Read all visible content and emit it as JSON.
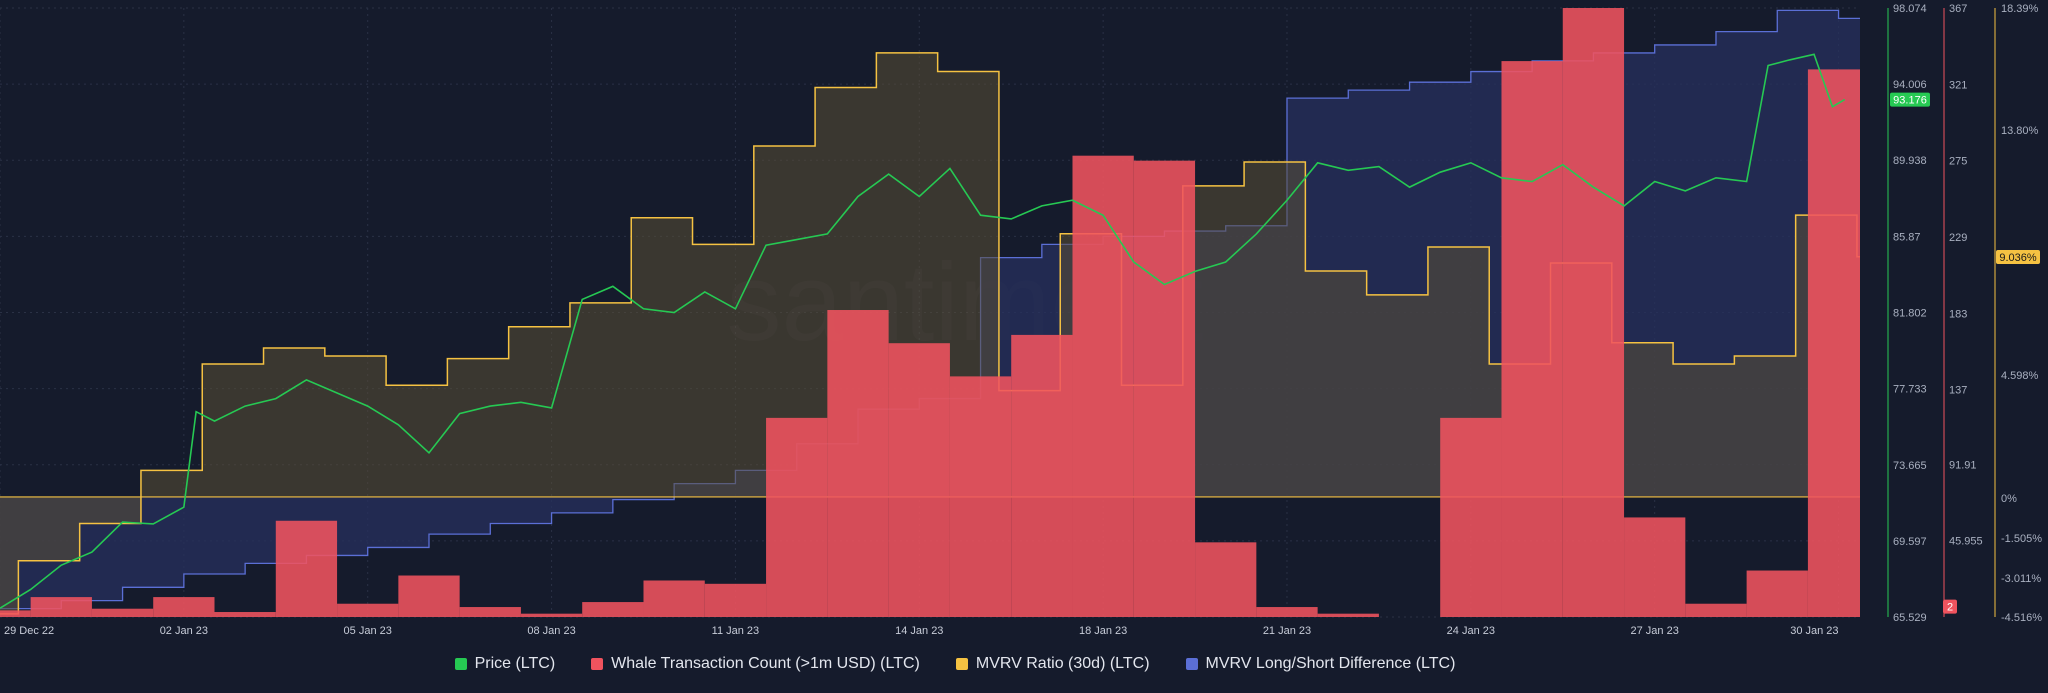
{
  "watermark": "santiment",
  "chart_data": {
    "type": "line",
    "x_tick_labels": [
      "29 Dec 22",
      "02 Jan 23",
      "05 Jan 23",
      "08 Jan 23",
      "11 Jan 23",
      "14 Jan 23",
      "18 Jan 23",
      "21 Jan 23",
      "24 Jan 23",
      "27 Jan 23",
      "30 Jan 23"
    ],
    "x_tick_days": [
      0,
      3,
      6,
      9,
      12,
      15,
      18,
      21,
      24,
      27,
      30
    ],
    "x_range_days": [
      0,
      30.35
    ],
    "grid": true,
    "legend_position": "bottom",
    "axes": {
      "price": {
        "color": "#26c953",
        "range": [
          65.529,
          98.074
        ],
        "ticks": [
          "98.074",
          "94.006",
          "89.938",
          "85.87",
          "81.802",
          "77.733",
          "73.665",
          "69.597",
          "65.529"
        ],
        "current": "93.176"
      },
      "whale": {
        "color": "#f0535e",
        "range": [
          0,
          367
        ],
        "ticks": [
          "367",
          "321",
          "275",
          "229",
          "183",
          "137",
          "91.91",
          "45.955"
        ],
        "current": "2"
      },
      "mvrv": {
        "color": "#f5c242",
        "range": [
          -4.516,
          18.39
        ],
        "ticks": [
          "18.39%",
          "13.80%",
          "9.036%",
          "4.598%",
          "0%",
          "-1.505%",
          "-3.011%",
          "-4.516%"
        ],
        "current": "9.036%"
      }
    },
    "series": [
      {
        "name": "Price (LTC)",
        "color": "#26c953",
        "kind": "line",
        "values": [
          [
            0,
            66.0
          ],
          [
            0.5,
            67.0
          ],
          [
            1,
            68.3
          ],
          [
            1.5,
            69.0
          ],
          [
            2,
            70.6
          ],
          [
            2.5,
            70.5
          ],
          [
            3,
            71.4
          ],
          [
            3.2,
            76.5
          ],
          [
            3.5,
            76.0
          ],
          [
            4,
            76.8
          ],
          [
            4.5,
            77.2
          ],
          [
            5,
            78.2
          ],
          [
            5.5,
            77.5
          ],
          [
            6,
            76.8
          ],
          [
            6.5,
            75.8
          ],
          [
            7,
            74.3
          ],
          [
            7.5,
            76.4
          ],
          [
            8,
            76.8
          ],
          [
            8.5,
            77.0
          ],
          [
            9,
            76.7
          ],
          [
            9.5,
            82.5
          ],
          [
            10,
            83.2
          ],
          [
            10.5,
            82.0
          ],
          [
            11,
            81.8
          ],
          [
            11.5,
            82.9
          ],
          [
            12,
            82.0
          ],
          [
            12.5,
            85.4
          ],
          [
            13,
            85.7
          ],
          [
            13.5,
            86.0
          ],
          [
            14,
            88.0
          ],
          [
            14.5,
            89.2
          ],
          [
            15,
            88.0
          ],
          [
            15.5,
            89.5
          ],
          [
            16,
            87.0
          ],
          [
            16.5,
            86.8
          ],
          [
            17,
            87.5
          ],
          [
            17.5,
            87.8
          ],
          [
            18,
            87.0
          ],
          [
            18.5,
            84.5
          ],
          [
            19,
            83.3
          ],
          [
            19.5,
            84.0
          ],
          [
            20,
            84.5
          ],
          [
            20.5,
            86.0
          ],
          [
            21,
            87.8
          ],
          [
            21.5,
            89.8
          ],
          [
            22,
            89.4
          ],
          [
            22.5,
            89.6
          ],
          [
            23,
            88.5
          ],
          [
            23.5,
            89.3
          ],
          [
            24,
            89.8
          ],
          [
            24.5,
            89.0
          ],
          [
            25,
            88.8
          ],
          [
            25.5,
            89.7
          ],
          [
            26,
            88.5
          ],
          [
            26.5,
            87.5
          ],
          [
            27,
            88.8
          ],
          [
            27.5,
            88.3
          ],
          [
            28,
            89.0
          ],
          [
            28.5,
            88.8
          ],
          [
            28.85,
            95.0
          ],
          [
            29.2,
            95.3
          ],
          [
            29.6,
            95.6
          ],
          [
            29.9,
            92.8
          ],
          [
            30.1,
            93.18
          ]
        ]
      },
      {
        "name": "Whale Transaction Count (>1m USD) (LTC)",
        "color": "#f0535e",
        "kind": "bar",
        "values": [
          [
            0,
            4
          ],
          [
            1,
            12
          ],
          [
            2,
            5
          ],
          [
            3,
            12
          ],
          [
            4,
            3
          ],
          [
            5,
            58
          ],
          [
            6,
            8
          ],
          [
            7,
            25
          ],
          [
            8,
            6
          ],
          [
            9,
            2
          ],
          [
            10,
            9
          ],
          [
            11,
            22
          ],
          [
            12,
            20
          ],
          [
            13,
            120
          ],
          [
            14,
            185
          ],
          [
            15,
            165
          ],
          [
            16,
            145
          ],
          [
            17,
            170
          ],
          [
            18,
            278
          ],
          [
            19,
            275
          ],
          [
            20,
            45
          ],
          [
            21,
            6
          ],
          [
            22,
            2
          ],
          [
            23,
            0
          ],
          [
            24,
            120
          ],
          [
            25,
            335
          ],
          [
            26,
            367
          ],
          [
            27,
            60
          ],
          [
            28,
            8
          ],
          [
            29,
            28
          ],
          [
            30,
            330
          ],
          [
            31,
            2
          ]
        ]
      },
      {
        "name": "MVRV Ratio (30d) (LTC)",
        "color": "#f5c242",
        "kind": "step-area",
        "values": [
          [
            0,
            -4.4
          ],
          [
            0.3,
            -2.4
          ],
          [
            1.3,
            -1.0
          ],
          [
            2.3,
            1.0
          ],
          [
            3.3,
            5.0
          ],
          [
            4.3,
            5.6
          ],
          [
            5.3,
            5.3
          ],
          [
            6.3,
            4.2
          ],
          [
            7.3,
            5.2
          ],
          [
            8.3,
            6.4
          ],
          [
            9.3,
            7.3
          ],
          [
            10.3,
            10.5
          ],
          [
            11.3,
            9.5
          ],
          [
            12.3,
            13.2
          ],
          [
            13.3,
            15.4
          ],
          [
            14.3,
            16.7
          ],
          [
            15.3,
            16.0
          ],
          [
            16.3,
            4.0
          ],
          [
            17.3,
            9.9
          ],
          [
            18.3,
            4.2
          ],
          [
            19.3,
            11.7
          ],
          [
            20.3,
            12.6
          ],
          [
            21.3,
            8.5
          ],
          [
            22.3,
            7.6
          ],
          [
            23.3,
            9.4
          ],
          [
            24.3,
            5.0
          ],
          [
            25.3,
            8.8
          ],
          [
            26.3,
            5.8
          ],
          [
            27.3,
            5.0
          ],
          [
            28.3,
            5.3
          ],
          [
            29.3,
            10.6
          ],
          [
            30.3,
            9.036
          ]
        ]
      },
      {
        "name": "MVRV Long/Short Difference (LTC)",
        "color": "#5b6fd6",
        "kind": "step-area",
        "values": [
          [
            0,
            -4.2
          ],
          [
            1,
            -3.9
          ],
          [
            2,
            -3.4
          ],
          [
            3,
            -2.9
          ],
          [
            4,
            -2.5
          ],
          [
            5,
            -2.2
          ],
          [
            6,
            -1.9
          ],
          [
            7,
            -1.4
          ],
          [
            8,
            -1.0
          ],
          [
            9,
            -0.6
          ],
          [
            10,
            -0.1
          ],
          [
            11,
            0.5
          ],
          [
            12,
            1.0
          ],
          [
            13,
            2.0
          ],
          [
            14,
            3.3
          ],
          [
            15,
            3.7
          ],
          [
            16,
            9.0
          ],
          [
            17,
            9.5
          ],
          [
            18,
            9.8
          ],
          [
            19,
            10.0
          ],
          [
            20,
            10.2
          ],
          [
            21,
            15.0
          ],
          [
            22,
            15.3
          ],
          [
            23,
            15.6
          ],
          [
            24,
            16.0
          ],
          [
            25,
            16.4
          ],
          [
            26,
            16.7
          ],
          [
            27,
            17.0
          ],
          [
            28,
            17.5
          ],
          [
            29,
            18.3
          ],
          [
            30,
            18.0
          ]
        ]
      }
    ]
  }
}
